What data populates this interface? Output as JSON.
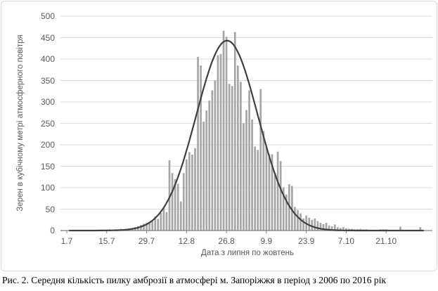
{
  "figure": {
    "caption": "Рис. 2. Середня кількість пилку амброзії в атмосфері м. Запоріжжя в період з 2006 по 2016 рік"
  },
  "chart_data": {
    "type": "bar",
    "title": "",
    "xlabel": "Дата з липня по жовтень",
    "ylabel": "Зерен в кубічному метрі атмосферного повітря",
    "ylim": [
      0,
      500
    ],
    "ytick_step": 50,
    "grid": true,
    "legend": "none",
    "x_tick_labels": [
      "1.7",
      "15.7",
      "29.7",
      "12.8",
      "26.8",
      "9.9",
      "23.9",
      "7.10",
      "21.10"
    ],
    "x_tick_days": [
      1,
      15,
      29,
      43,
      57,
      71,
      85,
      99,
      113
    ],
    "x_day_range": [
      1,
      127
    ],
    "series": [
      {
        "name": "daily-pollen-histogram",
        "type": "bar",
        "x_start_day": 1,
        "values": [
          0,
          0,
          0,
          0,
          0,
          0,
          0,
          0,
          0,
          0,
          0,
          1,
          1,
          2,
          2,
          3,
          2,
          3,
          3,
          4,
          3,
          4,
          5,
          6,
          8,
          10,
          13,
          16,
          18,
          20,
          24,
          33,
          27,
          41,
          54,
          43,
          164,
          134,
          120,
          109,
          68,
          134,
          166,
          183,
          177,
          192,
          405,
          385,
          254,
          280,
          303,
          327,
          350,
          409,
          412,
          466,
          452,
          342,
          337,
          463,
          385,
          347,
          250,
          281,
          327,
          259,
          196,
          188,
          330,
          232,
          196,
          178,
          178,
          134,
          184,
          162,
          101,
          84,
          108,
          104,
          55,
          48,
          40,
          28,
          35,
          30,
          25,
          28,
          22,
          18,
          15,
          18,
          12,
          10,
          14,
          8,
          6,
          8,
          5,
          4,
          4,
          3,
          3,
          4,
          3,
          3,
          0,
          0,
          0,
          0,
          3,
          3,
          3,
          0,
          0,
          0,
          0,
          9,
          0,
          0,
          0,
          0,
          0,
          0,
          8,
          0
        ]
      },
      {
        "name": "normal-fit-curve",
        "type": "line",
        "model": "gaussian",
        "amplitude": 443,
        "mean_day": 57.2,
        "sigma_days": 10.8
      }
    ],
    "colors": {
      "bar": "#a6a6a6",
      "curve": "#404040",
      "grid": "#dcdcdc",
      "axis": "#808080",
      "tick_text": "#595959"
    }
  }
}
